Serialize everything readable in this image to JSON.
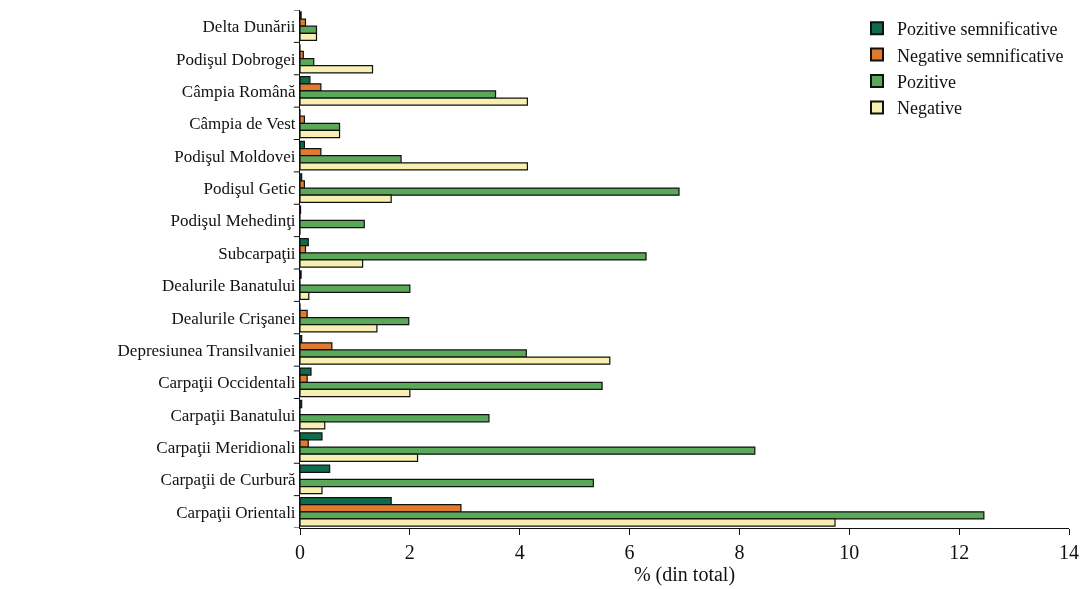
{
  "chart_data": {
    "type": "bar",
    "orientation": "horizontal",
    "xlabel": "% (din total)",
    "categories": [
      "Delta Dunării",
      "Podişul Dobrogei",
      "Câmpia Română",
      "Câmpia de Vest",
      "Podişul Moldovei",
      "Podişul Getic",
      "Podişul Mehedinţi",
      "Subcarpaţii",
      "Dealurile Banatului",
      "Dealurile Crişanei",
      "Depresiunea Transilvaniei",
      "Carpaţii Occidentali",
      "Carpaţii Banatului",
      "Carpaţii Meridionali",
      "Carpaţii de Curbură",
      "Carpaţii Orientali"
    ],
    "series": [
      {
        "name": "Pozitive semnificative",
        "color": "#0f6b4a",
        "values": [
          0.02,
          0,
          0.18,
          0,
          0.08,
          0.03,
          0.01,
          0.15,
          0.02,
          0,
          0.03,
          0.2,
          0.03,
          0.4,
          0.54,
          1.66
        ]
      },
      {
        "name": "Negative semnificative",
        "color": "#e07a2e",
        "values": [
          0.1,
          0.06,
          0.38,
          0.08,
          0.38,
          0.08,
          0,
          0.1,
          0,
          0.13,
          0.58,
          0.13,
          0,
          0.15,
          0,
          2.93
        ]
      },
      {
        "name": "Pozitive",
        "color": "#5aa85a",
        "values": [
          0.3,
          0.25,
          3.56,
          0.72,
          1.84,
          6.9,
          1.17,
          6.3,
          2.0,
          1.98,
          4.12,
          5.5,
          3.44,
          8.28,
          5.34,
          12.45
        ]
      },
      {
        "name": "Negative",
        "color": "#f7f0b0",
        "values": [
          0.3,
          1.32,
          4.14,
          0.72,
          4.14,
          1.66,
          0,
          1.14,
          0.16,
          1.4,
          5.64,
          2.0,
          0.45,
          2.14,
          0.4,
          9.74
        ]
      }
    ],
    "xlim": [
      0,
      14
    ],
    "xticks": [
      0,
      2,
      4,
      6,
      8,
      10,
      12,
      14
    ],
    "grid": false,
    "legend": "top right"
  }
}
